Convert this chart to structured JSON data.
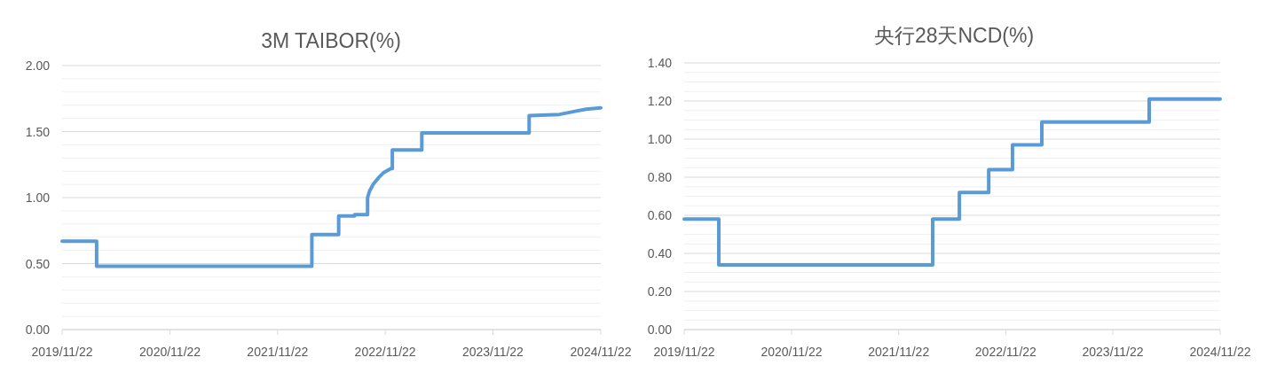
{
  "chart_data": [
    {
      "type": "line",
      "title": "3M TAIBOR(%)",
      "grid": "y",
      "xlim": [
        "2019-11-22",
        "2024-11-22"
      ],
      "xticks": [
        {
          "value": "2019-11-22",
          "label": "2019/11/22"
        },
        {
          "value": "2020-11-22",
          "label": "2020/11/22"
        },
        {
          "value": "2021-11-22",
          "label": "2021/11/22"
        },
        {
          "value": "2022-11-22",
          "label": "2022/11/22"
        },
        {
          "value": "2023-11-22",
          "label": "2023/11/22"
        },
        {
          "value": "2024-11-22",
          "label": "2024/11/22"
        }
      ],
      "ylim": [
        0,
        2
      ],
      "yticks": [
        {
          "value": 0,
          "label": "0.00"
        },
        {
          "value": 0.1,
          "label": null
        },
        {
          "value": 0.2,
          "label": null
        },
        {
          "value": 0.3,
          "label": null
        },
        {
          "value": 0.4,
          "label": null
        },
        {
          "value": 0.5,
          "label": "0.50"
        },
        {
          "value": 0.6,
          "label": null
        },
        {
          "value": 0.7,
          "label": null
        },
        {
          "value": 0.8,
          "label": null
        },
        {
          "value": 0.9,
          "label": null
        },
        {
          "value": 1,
          "label": "1.00"
        },
        {
          "value": 1.1,
          "label": null
        },
        {
          "value": 1.2,
          "label": null
        },
        {
          "value": 1.3,
          "label": null
        },
        {
          "value": 1.4,
          "label": null
        },
        {
          "value": 1.5,
          "label": "1.50"
        },
        {
          "value": 1.6,
          "label": null
        },
        {
          "value": 1.7,
          "label": null
        },
        {
          "value": 1.8,
          "label": null
        },
        {
          "value": 1.9,
          "label": null
        },
        {
          "value": 2,
          "label": "2.00"
        }
      ],
      "series": [
        {
          "color": "#5b9bd5",
          "x": [
            "2019-11-22",
            "2020-03-18",
            "2020-03-18",
            "2022-03-18",
            "2022-03-18",
            "2022-06-17",
            "2022-06-17",
            "2022-08-10",
            "2022-08-10",
            "2022-09-23",
            "2022-09-23",
            "2022-09-30",
            "2022-10-12",
            "2022-10-30",
            "2022-11-17",
            "2022-12-11",
            "2022-12-16",
            "2022-12-16",
            "2023-03-26",
            "2023-03-26",
            "2024-03-24",
            "2024-03-24",
            "2024-07-05",
            "2024-08-19",
            "2024-10-03",
            "2024-11-22"
          ],
          "values": [
            0.67,
            0.67,
            0.48,
            0.48,
            0.72,
            0.72,
            0.86,
            0.86,
            0.87,
            0.87,
            1.0,
            1.05,
            1.1,
            1.15,
            1.19,
            1.22,
            1.22,
            1.36,
            1.36,
            1.49,
            1.49,
            1.62,
            1.63,
            1.65,
            1.67,
            1.68
          ]
        }
      ]
    },
    {
      "type": "step",
      "title": "央行28天NCD(%)",
      "grid": "y",
      "xlim": [
        "2019-11-22",
        "2024-11-22"
      ],
      "xticks": [
        {
          "value": "2019-11-22",
          "label": "2019/11/22"
        },
        {
          "value": "2020-11-22",
          "label": "2020/11/22"
        },
        {
          "value": "2021-11-22",
          "label": "2021/11/22"
        },
        {
          "value": "2022-11-22",
          "label": "2022/11/22"
        },
        {
          "value": "2023-11-22",
          "label": "2023/11/22"
        },
        {
          "value": "2024-11-22",
          "label": "2024/11/22"
        }
      ],
      "ylim": [
        0,
        1.4
      ],
      "yticks": [
        {
          "value": 0,
          "label": "0.00"
        },
        {
          "value": 0.05,
          "label": null
        },
        {
          "value": 0.1,
          "label": null
        },
        {
          "value": 0.15,
          "label": null
        },
        {
          "value": 0.2,
          "label": "0.20"
        },
        {
          "value": 0.25,
          "label": null
        },
        {
          "value": 0.3,
          "label": null
        },
        {
          "value": 0.35,
          "label": null
        },
        {
          "value": 0.4,
          "label": "0.40"
        },
        {
          "value": 0.45,
          "label": null
        },
        {
          "value": 0.5,
          "label": null
        },
        {
          "value": 0.55,
          "label": null
        },
        {
          "value": 0.6,
          "label": "0.60"
        },
        {
          "value": 0.65,
          "label": null
        },
        {
          "value": 0.7,
          "label": null
        },
        {
          "value": 0.75,
          "label": null
        },
        {
          "value": 0.8,
          "label": "0.80"
        },
        {
          "value": 0.85,
          "label": null
        },
        {
          "value": 0.9,
          "label": null
        },
        {
          "value": 0.95,
          "label": null
        },
        {
          "value": 1,
          "label": "1.00"
        },
        {
          "value": 1.05,
          "label": null
        },
        {
          "value": 1.1,
          "label": null
        },
        {
          "value": 1.15,
          "label": null
        },
        {
          "value": 1.2,
          "label": "1.20"
        },
        {
          "value": 1.25,
          "label": null
        },
        {
          "value": 1.3,
          "label": null
        },
        {
          "value": 1.35,
          "label": null
        },
        {
          "value": 1.4,
          "label": "1.40"
        }
      ],
      "series": [
        {
          "color": "#5b9bd5",
          "x": [
            "2019-11-22",
            "2020-03-19",
            "2022-03-18",
            "2022-06-17",
            "2022-09-25",
            "2022-12-15",
            "2023-03-25",
            "2024-03-25",
            "2024-11-22"
          ],
          "values": [
            0.58,
            0.34,
            0.58,
            0.72,
            0.84,
            0.97,
            1.09,
            1.21,
            1.21
          ]
        }
      ]
    }
  ]
}
